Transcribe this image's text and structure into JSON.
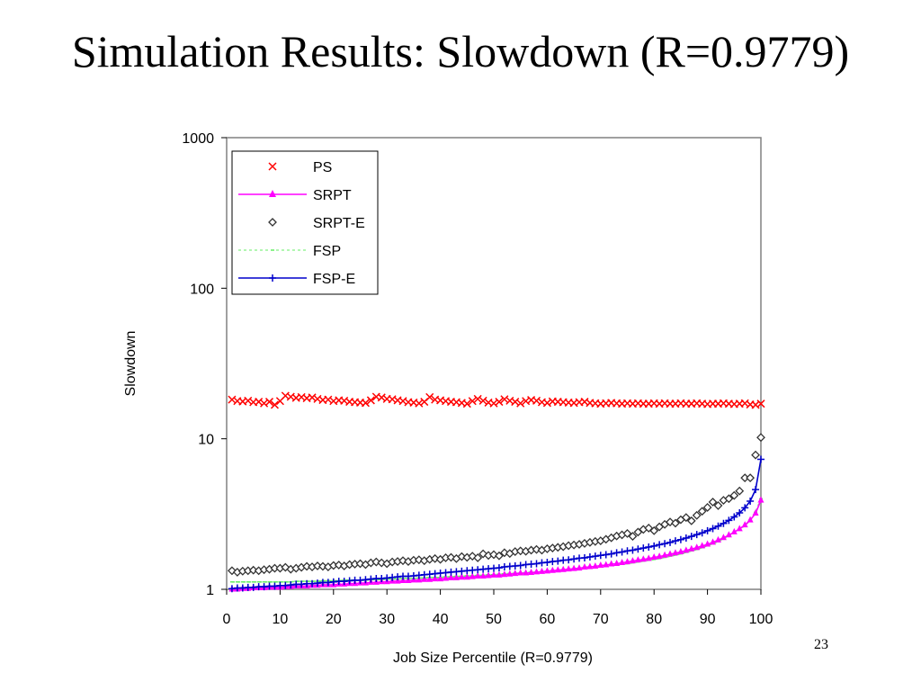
{
  "slide": {
    "title": "Simulation Results: Slowdown (R=0.9779)",
    "page_number": "23"
  },
  "chart_data": {
    "type": "scatter",
    "xlabel": "Job Size Percentile (R=0.9779)",
    "ylabel": "Slowdown",
    "xlim": [
      0,
      100
    ],
    "ylim": [
      1,
      1000
    ],
    "yscale": "log",
    "xticks": [
      "0",
      "10",
      "20",
      "30",
      "40",
      "50",
      "60",
      "70",
      "80",
      "90",
      "100"
    ],
    "yticks": [
      "1",
      "10",
      "100",
      "1000"
    ],
    "grid": false,
    "legend_position": "top-left",
    "series": [
      {
        "name": "PS",
        "color": "#ff0000",
        "marker": "x",
        "line": false,
        "x": [
          1,
          2,
          3,
          4,
          5,
          6,
          7,
          8,
          9,
          10,
          11,
          12,
          13,
          14,
          15,
          16,
          17,
          18,
          19,
          20,
          21,
          22,
          23,
          24,
          25,
          26,
          27,
          28,
          29,
          30,
          31,
          32,
          33,
          34,
          35,
          36,
          37,
          38,
          39,
          40,
          41,
          42,
          43,
          44,
          45,
          46,
          47,
          48,
          49,
          50,
          51,
          52,
          53,
          54,
          55,
          56,
          57,
          58,
          59,
          60,
          61,
          62,
          63,
          64,
          65,
          66,
          67,
          68,
          69,
          70,
          71,
          72,
          73,
          74,
          75,
          76,
          77,
          78,
          79,
          80,
          81,
          82,
          83,
          84,
          85,
          86,
          87,
          88,
          89,
          90,
          91,
          92,
          93,
          94,
          95,
          96,
          97,
          98,
          99,
          100
        ],
        "y": [
          18.2,
          17.8,
          17.7,
          17.9,
          17.5,
          17.6,
          17.2,
          17.6,
          16.8,
          17.8,
          19.3,
          19.0,
          18.7,
          18.9,
          18.6,
          18.8,
          18.4,
          18.1,
          18.2,
          17.8,
          18.0,
          17.9,
          17.6,
          17.5,
          17.4,
          17.3,
          18.0,
          19.0,
          18.8,
          18.4,
          18.3,
          18.0,
          17.8,
          17.5,
          17.4,
          17.2,
          17.6,
          18.9,
          18.2,
          18.0,
          17.8,
          17.6,
          17.5,
          17.3,
          17.1,
          17.8,
          18.4,
          17.9,
          17.4,
          17.2,
          17.6,
          18.3,
          17.9,
          17.6,
          17.2,
          17.8,
          18.1,
          17.9,
          17.5,
          17.3,
          17.7,
          17.6,
          17.5,
          17.4,
          17.3,
          17.5,
          17.6,
          17.3,
          17.2,
          17.1,
          17.2,
          17.3,
          17.2,
          17.1,
          17.2,
          17.1,
          17.2,
          17.1,
          17.1,
          17.2,
          17.1,
          17.2,
          17.1,
          17.1,
          17.2,
          17.1,
          17.1,
          17.2,
          17.1,
          17.0,
          17.1,
          17.1,
          17.2,
          17.1,
          17.0,
          17.1,
          17.2,
          16.9,
          16.8,
          17.1
        ]
      },
      {
        "name": "SRPT",
        "color": "#ff00ff",
        "marker": "triangle",
        "line": true,
        "x": [
          1,
          2,
          3,
          4,
          5,
          6,
          7,
          8,
          9,
          10,
          11,
          12,
          13,
          14,
          15,
          16,
          17,
          18,
          19,
          20,
          21,
          22,
          23,
          24,
          25,
          26,
          27,
          28,
          29,
          30,
          31,
          32,
          33,
          34,
          35,
          36,
          37,
          38,
          39,
          40,
          41,
          42,
          43,
          44,
          45,
          46,
          47,
          48,
          49,
          50,
          51,
          52,
          53,
          54,
          55,
          56,
          57,
          58,
          59,
          60,
          61,
          62,
          63,
          64,
          65,
          66,
          67,
          68,
          69,
          70,
          71,
          72,
          73,
          74,
          75,
          76,
          77,
          78,
          79,
          80,
          81,
          82,
          83,
          84,
          85,
          86,
          87,
          88,
          89,
          90,
          91,
          92,
          93,
          94,
          95,
          96,
          97,
          98,
          99,
          100
        ],
        "y": [
          1.0,
          1.0,
          1.01,
          1.01,
          1.02,
          1.02,
          1.02,
          1.03,
          1.03,
          1.03,
          1.04,
          1.04,
          1.05,
          1.05,
          1.05,
          1.06,
          1.06,
          1.07,
          1.07,
          1.07,
          1.08,
          1.08,
          1.09,
          1.09,
          1.1,
          1.1,
          1.11,
          1.11,
          1.12,
          1.12,
          1.13,
          1.13,
          1.14,
          1.14,
          1.15,
          1.15,
          1.16,
          1.16,
          1.17,
          1.17,
          1.18,
          1.19,
          1.19,
          1.2,
          1.2,
          1.21,
          1.22,
          1.22,
          1.23,
          1.24,
          1.24,
          1.25,
          1.26,
          1.27,
          1.28,
          1.28,
          1.29,
          1.3,
          1.31,
          1.32,
          1.33,
          1.34,
          1.35,
          1.36,
          1.37,
          1.38,
          1.4,
          1.41,
          1.42,
          1.44,
          1.45,
          1.47,
          1.48,
          1.5,
          1.52,
          1.54,
          1.56,
          1.58,
          1.6,
          1.63,
          1.65,
          1.68,
          1.71,
          1.74,
          1.77,
          1.81,
          1.85,
          1.89,
          1.94,
          1.99,
          2.05,
          2.12,
          2.2,
          2.29,
          2.4,
          2.52,
          2.67,
          2.88,
          3.2,
          3.9
        ]
      },
      {
        "name": "SRPT-E",
        "color": "#333333",
        "marker": "diamond",
        "line": false,
        "x": [
          1,
          2,
          3,
          4,
          5,
          6,
          7,
          8,
          9,
          10,
          11,
          12,
          13,
          14,
          15,
          16,
          17,
          18,
          19,
          20,
          21,
          22,
          23,
          24,
          25,
          26,
          27,
          28,
          29,
          30,
          31,
          32,
          33,
          34,
          35,
          36,
          37,
          38,
          39,
          40,
          41,
          42,
          43,
          44,
          45,
          46,
          47,
          48,
          49,
          50,
          51,
          52,
          53,
          54,
          55,
          56,
          57,
          58,
          59,
          60,
          61,
          62,
          63,
          64,
          65,
          66,
          67,
          68,
          69,
          70,
          71,
          72,
          73,
          74,
          75,
          76,
          77,
          78,
          79,
          80,
          81,
          82,
          83,
          84,
          85,
          86,
          87,
          88,
          89,
          90,
          91,
          92,
          93,
          94,
          95,
          96,
          97,
          98,
          99,
          100
        ],
        "y": [
          1.33,
          1.3,
          1.32,
          1.33,
          1.34,
          1.33,
          1.35,
          1.36,
          1.38,
          1.38,
          1.4,
          1.36,
          1.38,
          1.4,
          1.42,
          1.41,
          1.43,
          1.42,
          1.41,
          1.44,
          1.45,
          1.43,
          1.46,
          1.47,
          1.48,
          1.46,
          1.5,
          1.52,
          1.5,
          1.48,
          1.52,
          1.53,
          1.55,
          1.53,
          1.56,
          1.57,
          1.55,
          1.58,
          1.6,
          1.58,
          1.62,
          1.63,
          1.6,
          1.65,
          1.63,
          1.66,
          1.62,
          1.72,
          1.68,
          1.7,
          1.67,
          1.75,
          1.73,
          1.78,
          1.8,
          1.79,
          1.82,
          1.84,
          1.82,
          1.86,
          1.88,
          1.9,
          1.92,
          1.95,
          1.97,
          1.99,
          2.02,
          2.05,
          2.08,
          2.1,
          2.15,
          2.2,
          2.26,
          2.3,
          2.35,
          2.25,
          2.4,
          2.5,
          2.55,
          2.45,
          2.6,
          2.7,
          2.8,
          2.75,
          2.9,
          3.0,
          2.85,
          3.1,
          3.3,
          3.5,
          3.8,
          3.6,
          3.9,
          4.0,
          4.2,
          4.5,
          5.5,
          5.5,
          7.8,
          10.2
        ]
      },
      {
        "name": "FSP",
        "color": "#66ee66",
        "marker": "dash",
        "line": true,
        "dashed": true,
        "x": [
          1,
          2,
          3,
          4,
          5,
          6,
          7,
          8,
          9,
          10,
          11,
          12,
          13,
          14,
          15,
          16,
          17,
          18,
          19,
          20,
          21,
          22,
          23,
          24,
          25,
          26,
          27,
          28,
          29,
          30,
          31,
          32,
          33,
          34,
          35,
          36,
          37,
          38,
          39,
          40,
          41,
          42,
          43,
          44,
          45,
          46,
          47,
          48,
          49,
          50,
          51,
          52,
          53,
          54,
          55,
          56,
          57,
          58,
          59,
          60,
          61,
          62,
          63,
          64,
          65,
          66,
          67,
          68,
          69,
          70,
          71,
          72,
          73,
          74,
          75,
          76,
          77,
          78,
          79,
          80,
          81,
          82,
          83,
          84,
          85,
          86,
          87,
          88,
          89,
          90,
          91,
          92,
          93,
          94,
          95,
          96,
          97,
          98,
          99,
          100
        ],
        "y": [
          1.12,
          1.12,
          1.12,
          1.12,
          1.12,
          1.12,
          1.12,
          1.12,
          1.12,
          1.12,
          1.12,
          1.12,
          1.13,
          1.13,
          1.13,
          1.13,
          1.13,
          1.14,
          1.14,
          1.14,
          1.14,
          1.15,
          1.15,
          1.15,
          1.15,
          1.15,
          1.16,
          1.16,
          1.16,
          1.17,
          1.17,
          1.17,
          1.18,
          1.18,
          1.18,
          1.19,
          1.19,
          1.2,
          1.2,
          1.2,
          1.21,
          1.21,
          1.22,
          1.22,
          1.23,
          1.23,
          1.24,
          1.24,
          1.25,
          1.25,
          1.26,
          1.27,
          1.27,
          1.28,
          1.28,
          1.29,
          1.3,
          1.3,
          1.31,
          1.32,
          1.33,
          1.33,
          1.34,
          1.35,
          1.36,
          1.37,
          1.38,
          1.39,
          1.4,
          1.41,
          1.43,
          1.44,
          1.45,
          1.47,
          1.48,
          1.5,
          1.52,
          1.54,
          1.56,
          1.58,
          1.6,
          1.63,
          1.66,
          1.69,
          1.72,
          1.76,
          1.8,
          1.84,
          1.89,
          1.95,
          2.01,
          2.08,
          2.16,
          2.26,
          2.37,
          2.5,
          2.65,
          2.88,
          3.25,
          4.0
        ]
      },
      {
        "name": "FSP-E",
        "color": "#0000cc",
        "marker": "plus",
        "line": true,
        "x": [
          1,
          2,
          3,
          4,
          5,
          6,
          7,
          8,
          9,
          10,
          11,
          12,
          13,
          14,
          15,
          16,
          17,
          18,
          19,
          20,
          21,
          22,
          23,
          24,
          25,
          26,
          27,
          28,
          29,
          30,
          31,
          32,
          33,
          34,
          35,
          36,
          37,
          38,
          39,
          40,
          41,
          42,
          43,
          44,
          45,
          46,
          47,
          48,
          49,
          50,
          51,
          52,
          53,
          54,
          55,
          56,
          57,
          58,
          59,
          60,
          61,
          62,
          63,
          64,
          65,
          66,
          67,
          68,
          69,
          70,
          71,
          72,
          73,
          74,
          75,
          76,
          77,
          78,
          79,
          80,
          81,
          82,
          83,
          84,
          85,
          86,
          87,
          88,
          89,
          90,
          91,
          92,
          93,
          94,
          95,
          96,
          97,
          98,
          99,
          100
        ],
        "y": [
          1.01,
          1.02,
          1.02,
          1.03,
          1.03,
          1.04,
          1.04,
          1.05,
          1.05,
          1.06,
          1.06,
          1.07,
          1.08,
          1.08,
          1.09,
          1.09,
          1.1,
          1.11,
          1.11,
          1.12,
          1.13,
          1.13,
          1.14,
          1.15,
          1.15,
          1.16,
          1.17,
          1.18,
          1.18,
          1.19,
          1.2,
          1.21,
          1.22,
          1.22,
          1.23,
          1.24,
          1.25,
          1.26,
          1.27,
          1.28,
          1.29,
          1.3,
          1.31,
          1.32,
          1.33,
          1.34,
          1.35,
          1.36,
          1.37,
          1.38,
          1.39,
          1.41,
          1.42,
          1.43,
          1.44,
          1.46,
          1.47,
          1.48,
          1.5,
          1.51,
          1.53,
          1.54,
          1.56,
          1.57,
          1.59,
          1.61,
          1.62,
          1.64,
          1.66,
          1.68,
          1.7,
          1.72,
          1.75,
          1.77,
          1.8,
          1.82,
          1.85,
          1.88,
          1.91,
          1.94,
          1.98,
          2.01,
          2.05,
          2.1,
          2.14,
          2.19,
          2.25,
          2.31,
          2.37,
          2.45,
          2.53,
          2.63,
          2.74,
          2.87,
          3.03,
          3.22,
          3.48,
          3.85,
          4.6,
          7.3
        ]
      }
    ]
  }
}
